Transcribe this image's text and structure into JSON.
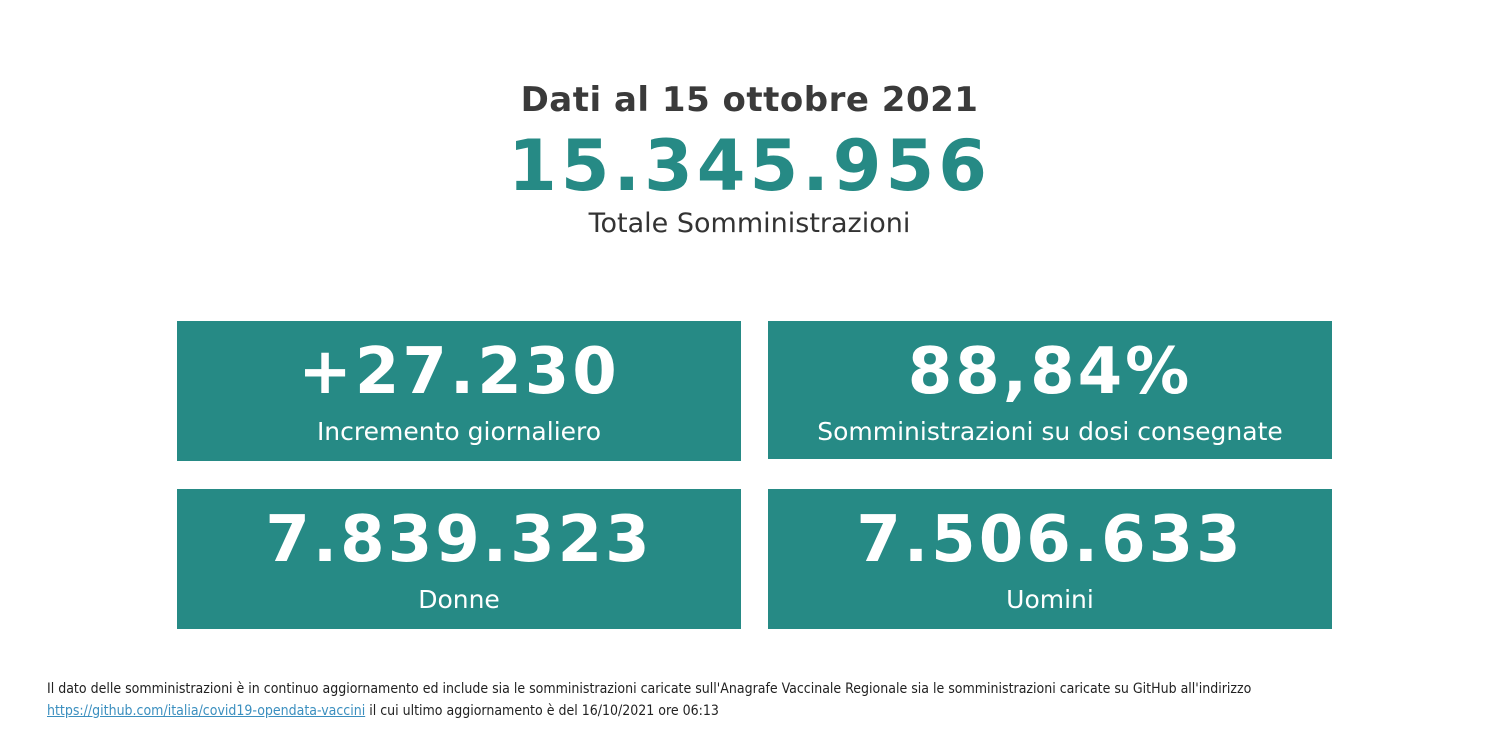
{
  "header": {
    "date_line": "Dati al 15 ottobre 2021",
    "total_value": "15.345.956",
    "total_label": "Totale Somministrazioni"
  },
  "cards": [
    {
      "value": "+27.230",
      "label": "Incremento giornaliero"
    },
    {
      "value": "88,84%",
      "label": "Somministrazioni su dosi consegnate"
    },
    {
      "value": "7.839.323",
      "label": "Donne"
    },
    {
      "value": "7.506.633",
      "label": "Uomini"
    }
  ],
  "footer": {
    "text_before": "Il dato delle somministrazioni è in continuo aggiornamento ed include sia le somministrazioni caricate sull'Anagrafe Vaccinale Regionale sia le somministrazioni caricate su GitHub all'indirizzo",
    "link_text": "https://github.com/italia/covid19-opendata-vaccini",
    "text_after": " il cui ultimo aggiornamento è del 16/10/2021 ore 06:13"
  },
  "colors": {
    "accent": "#268a85",
    "title": "#3a3a3a",
    "link": "#3b8fbf"
  }
}
